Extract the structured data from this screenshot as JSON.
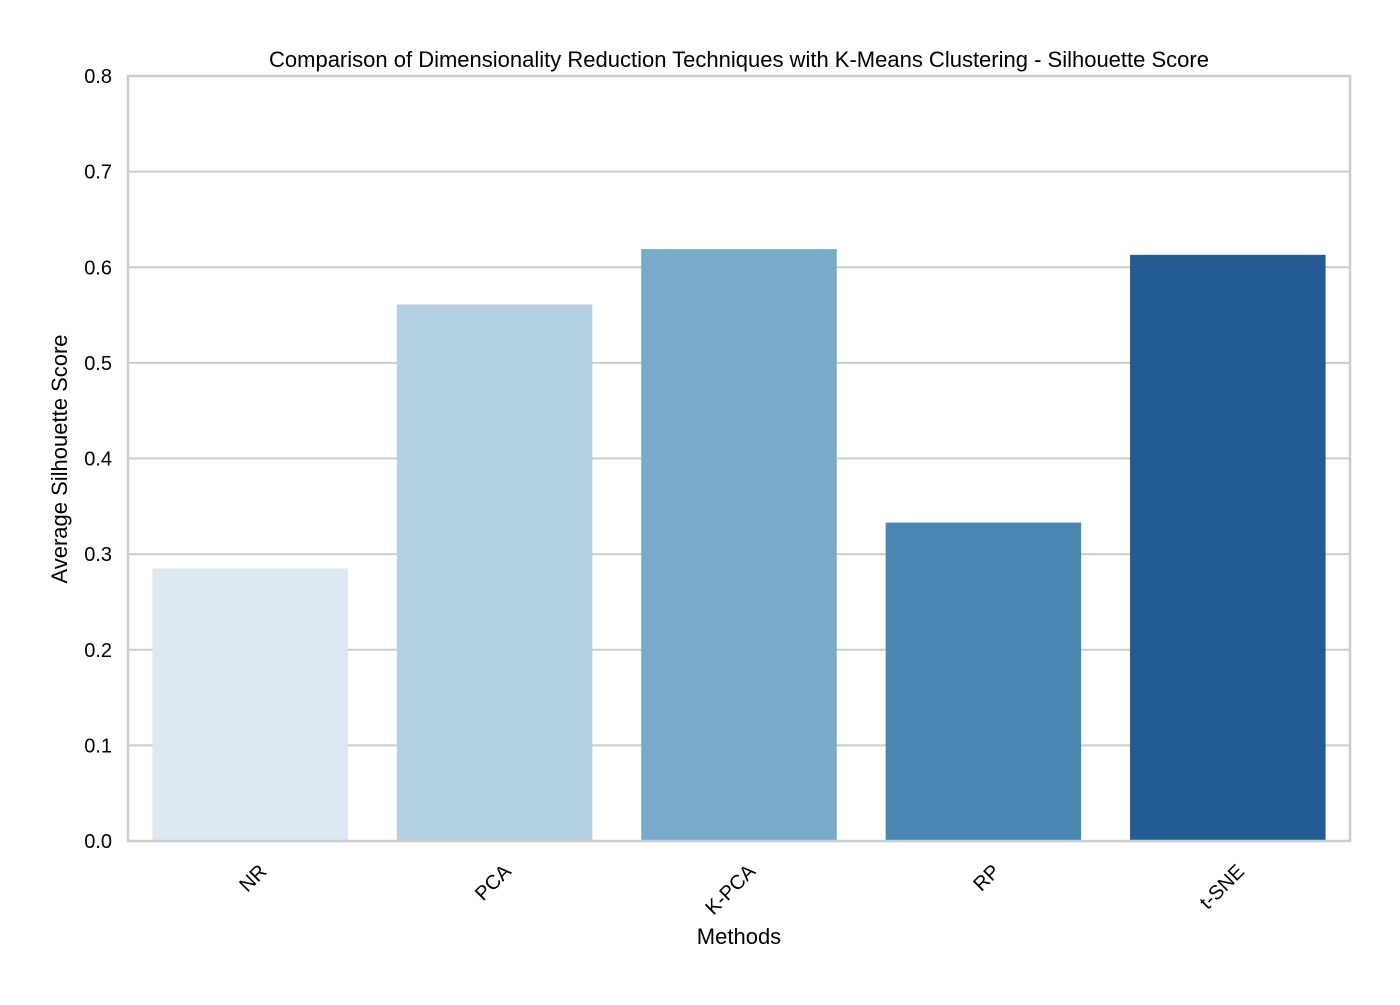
{
  "chart_data": {
    "type": "bar",
    "title": "Comparison of Dimensionality Reduction Techniques with K-Means Clustering - Silhouette Score",
    "xlabel": "Methods",
    "ylabel": "Average Silhouette Score",
    "categories": [
      "NR",
      "PCA",
      "K-PCA",
      "RP",
      "t-SNE"
    ],
    "values": [
      0.285,
      0.561,
      0.619,
      0.333,
      0.613
    ],
    "colors": [
      "#dbe7f3",
      "#b3cfe2",
      "#78aac9",
      "#4a87b2",
      "#225c93"
    ],
    "ylim": [
      0,
      0.8
    ],
    "yticks": [
      "0.0",
      "0.1",
      "0.2",
      "0.3",
      "0.4",
      "0.5",
      "0.6",
      "0.7",
      "0.8"
    ],
    "ytick_values": [
      0,
      0.1,
      0.2,
      0.3,
      0.4,
      0.5,
      0.6,
      0.7,
      0.8
    ],
    "xtick_rotation_deg": 45,
    "grid": "y",
    "grid_color": "#cccccc",
    "frame_color": "#cccccc",
    "legend": "none"
  }
}
